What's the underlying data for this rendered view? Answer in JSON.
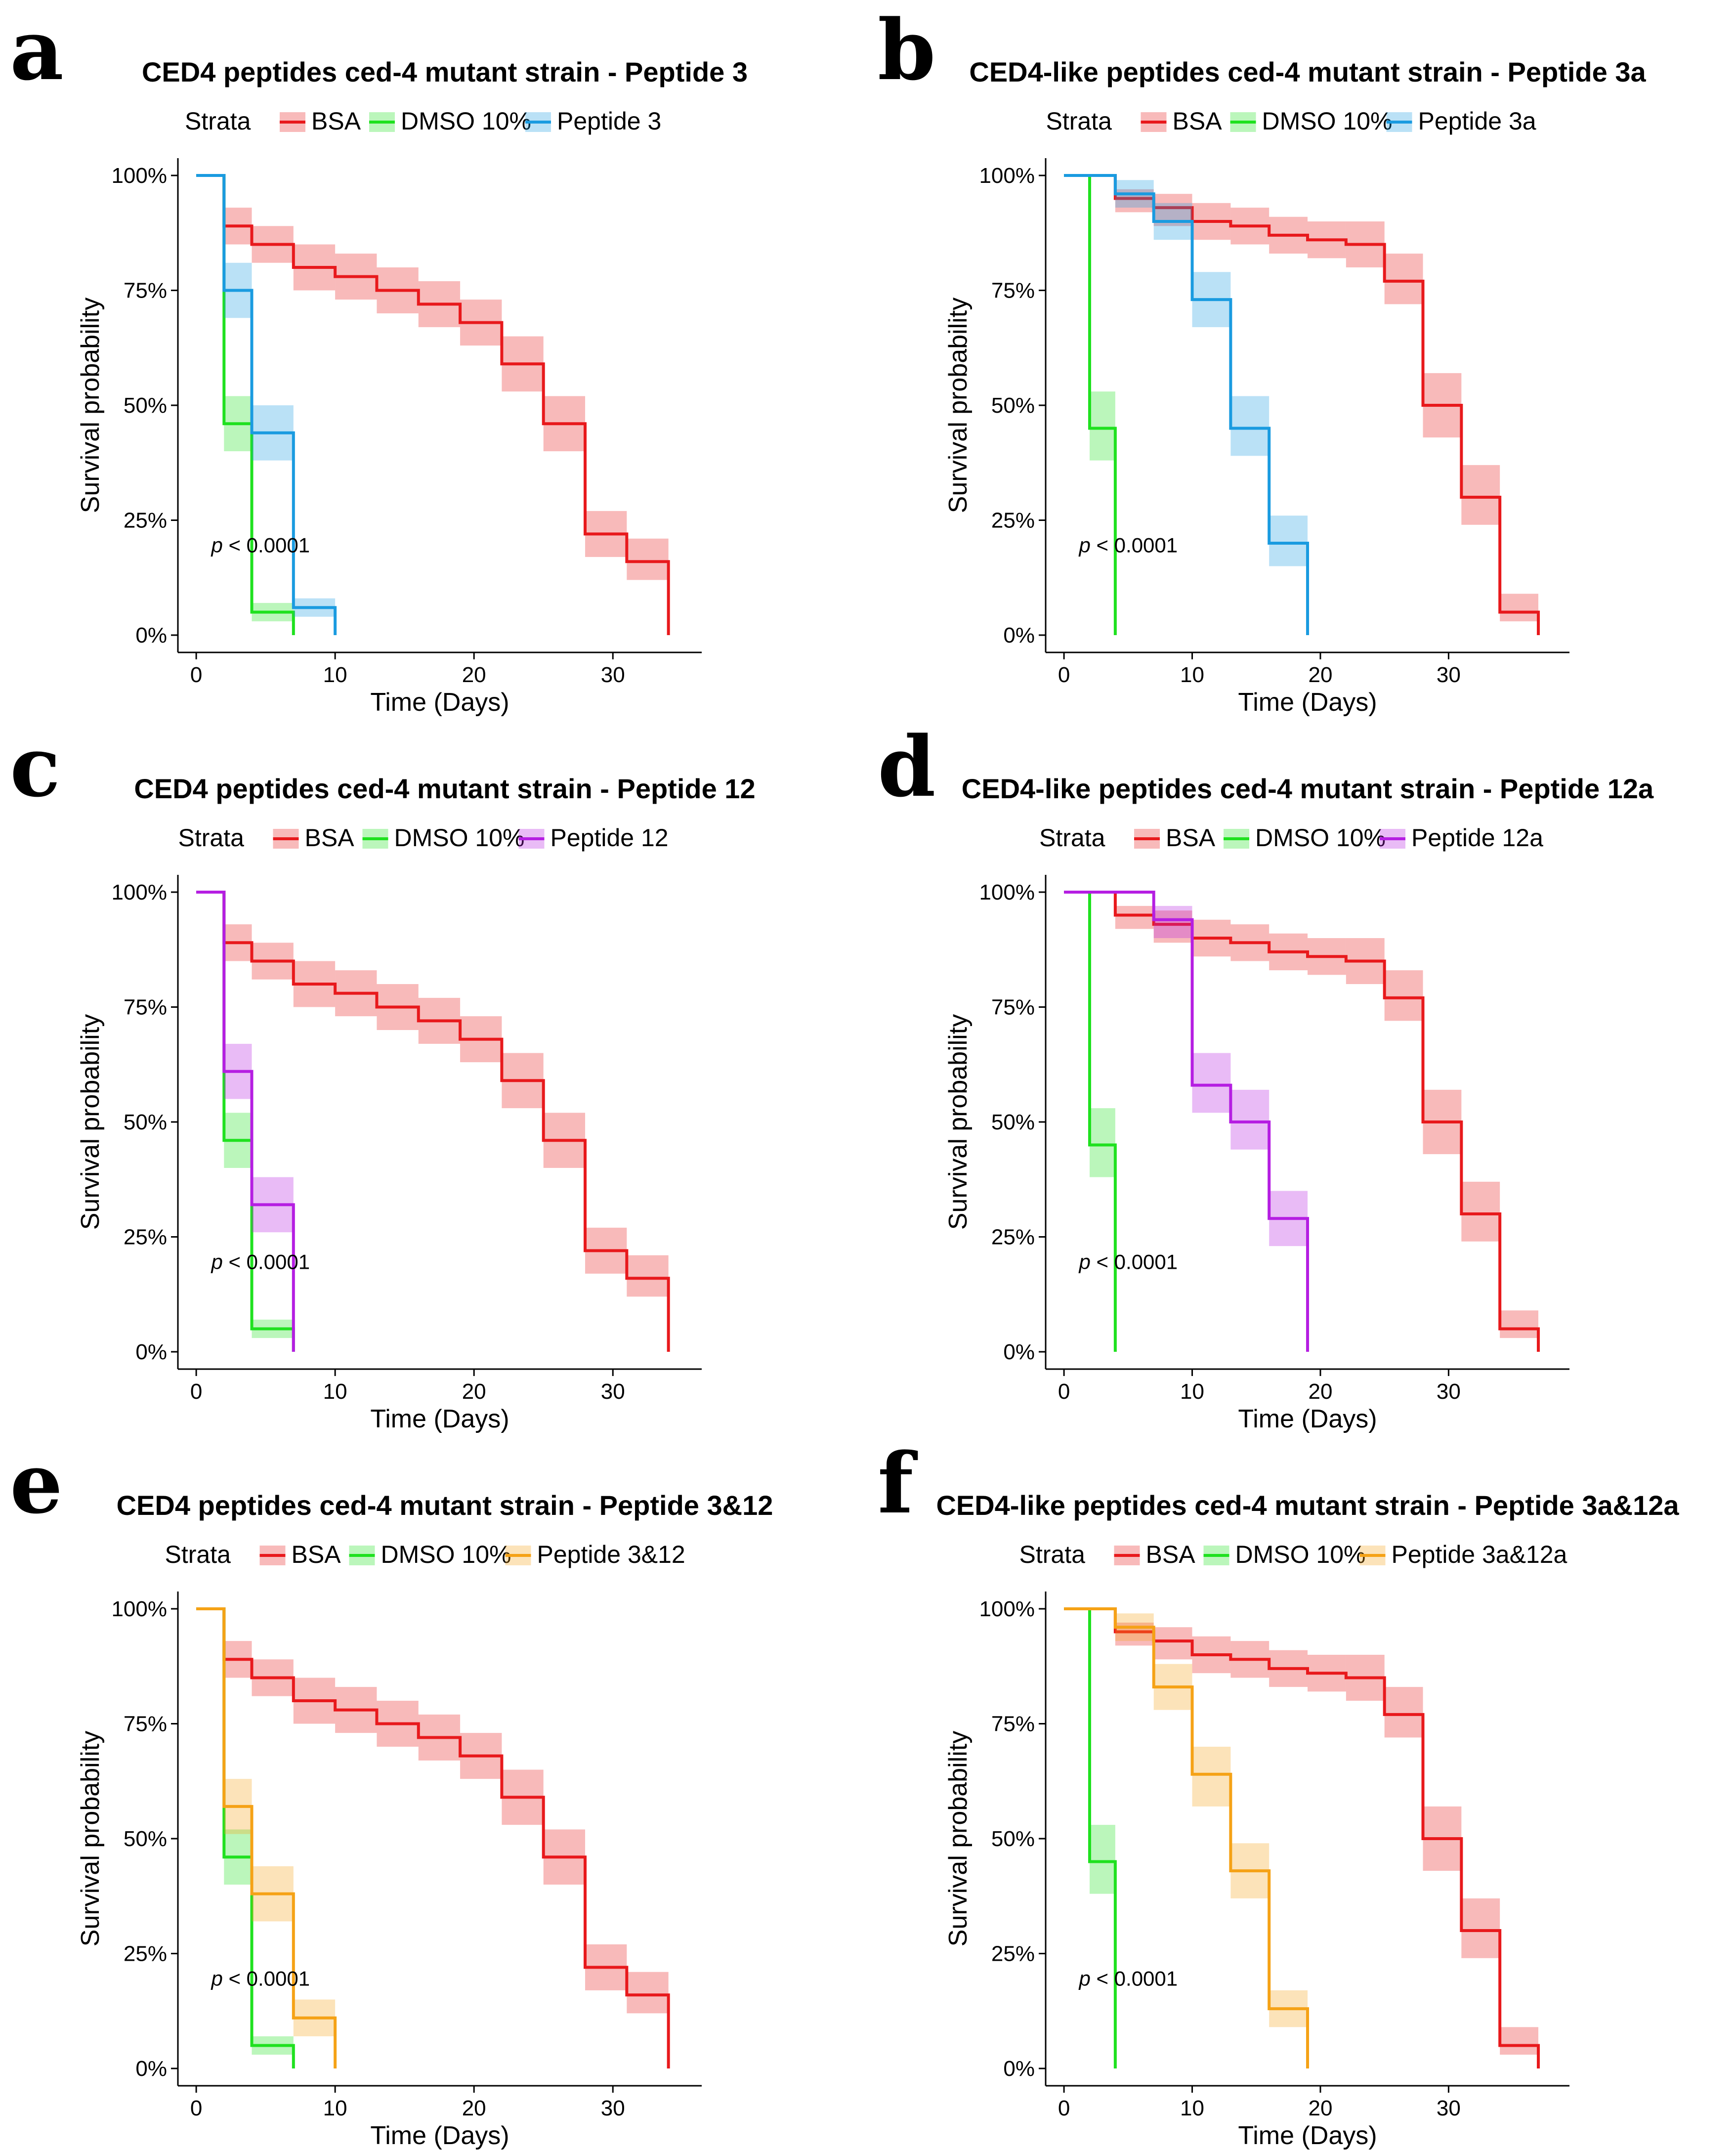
{
  "common": {
    "legend_title": "Strata",
    "xlabel": "Time (Days)",
    "ylabel": "Survival probability",
    "p_symbol": "p",
    "p_rest": " < 0.0001",
    "xticks": [
      "0",
      "10",
      "20",
      "30"
    ],
    "yticks": [
      "0%",
      "25%",
      "50%",
      "75%",
      "100%"
    ],
    "colors": {
      "BSA": "#e8191c",
      "DMSO 10%": "#1fe11f",
      "Peptide 3": "#1a9be0",
      "Peptide 3a": "#1a9be0",
      "Peptide 12": "#b51ee2",
      "Peptide 12a": "#b51ee2",
      "Peptide 3&12": "#f5a216",
      "Peptide 3a&12a": "#f5a216"
    }
  },
  "chart_data": [
    {
      "panel": "a",
      "type": "line",
      "title": "CED4 peptides ced-4 mutant strain - Peptide 3",
      "xlim": [
        0,
        36
      ],
      "ylim": [
        0,
        1
      ],
      "legend": [
        "BSA",
        "DMSO 10%",
        "Peptide 3"
      ],
      "series": [
        {
          "name": "BSA",
          "x": [
            0,
            2,
            4,
            7,
            10,
            13,
            16,
            19,
            22,
            25,
            28,
            31,
            34
          ],
          "y": [
            1,
            0.89,
            0.85,
            0.8,
            0.78,
            0.75,
            0.72,
            0.68,
            0.59,
            0.46,
            0.22,
            0.16,
            0
          ],
          "lo": [
            1,
            0.85,
            0.81,
            0.75,
            0.73,
            0.7,
            0.67,
            0.63,
            0.53,
            0.4,
            0.17,
            0.12,
            0
          ],
          "hi": [
            1,
            0.93,
            0.89,
            0.85,
            0.83,
            0.8,
            0.77,
            0.73,
            0.65,
            0.52,
            0.27,
            0.21,
            0
          ]
        },
        {
          "name": "DMSO 10%",
          "x": [
            0,
            2,
            4,
            7
          ],
          "y": [
            1,
            0.46,
            0.05,
            0
          ],
          "lo": [
            1,
            0.4,
            0.03,
            0
          ],
          "hi": [
            1,
            0.52,
            0.07,
            0
          ]
        },
        {
          "name": "Peptide 3",
          "x": [
            0,
            2,
            4,
            7,
            10
          ],
          "y": [
            1,
            0.75,
            0.44,
            0.06,
            0
          ],
          "lo": [
            1,
            0.69,
            0.38,
            0.04,
            0
          ],
          "hi": [
            1,
            0.81,
            0.5,
            0.08,
            0
          ]
        }
      ]
    },
    {
      "panel": "b",
      "type": "line",
      "title": "CED4-like peptides ced-4 mutant strain - Peptide 3a",
      "xlim": [
        0,
        39
      ],
      "ylim": [
        0,
        1
      ],
      "legend": [
        "BSA",
        "DMSO 10%",
        "Peptide 3a"
      ],
      "series": [
        {
          "name": "BSA",
          "x": [
            0,
            4,
            7,
            10,
            13,
            16,
            19,
            22,
            25,
            28,
            31,
            34,
            37
          ],
          "y": [
            1,
            0.95,
            0.93,
            0.9,
            0.89,
            0.87,
            0.86,
            0.85,
            0.77,
            0.5,
            0.3,
            0.05,
            0
          ],
          "lo": [
            1,
            0.92,
            0.89,
            0.86,
            0.85,
            0.83,
            0.82,
            0.8,
            0.72,
            0.43,
            0.24,
            0.03,
            0
          ],
          "hi": [
            1,
            0.97,
            0.96,
            0.94,
            0.93,
            0.91,
            0.9,
            0.9,
            0.83,
            0.57,
            0.37,
            0.09,
            0
          ]
        },
        {
          "name": "DMSO 10%",
          "x": [
            0,
            2,
            4
          ],
          "y": [
            1,
            0.45,
            0
          ],
          "lo": [
            1,
            0.38,
            0
          ],
          "hi": [
            1,
            0.53,
            0
          ]
        },
        {
          "name": "Peptide 3a",
          "x": [
            0,
            4,
            7,
            10,
            13,
            16,
            19
          ],
          "y": [
            1,
            0.96,
            0.9,
            0.73,
            0.45,
            0.2,
            0
          ],
          "lo": [
            1,
            0.93,
            0.86,
            0.67,
            0.39,
            0.15,
            0
          ],
          "hi": [
            1,
            0.99,
            0.94,
            0.79,
            0.52,
            0.26,
            0
          ]
        }
      ]
    },
    {
      "panel": "c",
      "type": "line",
      "title": "CED4 peptides ced-4 mutant strain - Peptide 12",
      "xlim": [
        0,
        36
      ],
      "ylim": [
        0,
        1
      ],
      "legend": [
        "BSA",
        "DMSO 10%",
        "Peptide 12"
      ],
      "series": [
        {
          "name": "BSA",
          "x": [
            0,
            2,
            4,
            7,
            10,
            13,
            16,
            19,
            22,
            25,
            28,
            31,
            34
          ],
          "y": [
            1,
            0.89,
            0.85,
            0.8,
            0.78,
            0.75,
            0.72,
            0.68,
            0.59,
            0.46,
            0.22,
            0.16,
            0
          ],
          "lo": [
            1,
            0.85,
            0.81,
            0.75,
            0.73,
            0.7,
            0.67,
            0.63,
            0.53,
            0.4,
            0.17,
            0.12,
            0
          ],
          "hi": [
            1,
            0.93,
            0.89,
            0.85,
            0.83,
            0.8,
            0.77,
            0.73,
            0.65,
            0.52,
            0.27,
            0.21,
            0
          ]
        },
        {
          "name": "DMSO 10%",
          "x": [
            0,
            2,
            4,
            7
          ],
          "y": [
            1,
            0.46,
            0.05,
            0
          ],
          "lo": [
            1,
            0.4,
            0.03,
            0
          ],
          "hi": [
            1,
            0.52,
            0.07,
            0
          ]
        },
        {
          "name": "Peptide 12",
          "x": [
            0,
            2,
            4,
            7
          ],
          "y": [
            1,
            0.61,
            0.32,
            0
          ],
          "lo": [
            1,
            0.55,
            0.26,
            0
          ],
          "hi": [
            1,
            0.67,
            0.38,
            0
          ]
        }
      ]
    },
    {
      "panel": "d",
      "type": "line",
      "title": "CED4-like peptides ced-4 mutant strain - Peptide 12a",
      "xlim": [
        0,
        39
      ],
      "ylim": [
        0,
        1
      ],
      "legend": [
        "BSA",
        "DMSO 10%",
        "Peptide 12a"
      ],
      "series": [
        {
          "name": "BSA",
          "x": [
            0,
            4,
            7,
            10,
            13,
            16,
            19,
            22,
            25,
            28,
            31,
            34,
            37
          ],
          "y": [
            1,
            0.95,
            0.93,
            0.9,
            0.89,
            0.87,
            0.86,
            0.85,
            0.77,
            0.5,
            0.3,
            0.05,
            0
          ],
          "lo": [
            1,
            0.92,
            0.89,
            0.86,
            0.85,
            0.83,
            0.82,
            0.8,
            0.72,
            0.43,
            0.24,
            0.03,
            0
          ],
          "hi": [
            1,
            0.97,
            0.96,
            0.94,
            0.93,
            0.91,
            0.9,
            0.9,
            0.83,
            0.57,
            0.37,
            0.09,
            0
          ]
        },
        {
          "name": "DMSO 10%",
          "x": [
            0,
            2,
            4
          ],
          "y": [
            1,
            0.45,
            0
          ],
          "lo": [
            1,
            0.38,
            0
          ],
          "hi": [
            1,
            0.53,
            0
          ]
        },
        {
          "name": "Peptide 12a",
          "x": [
            0,
            7,
            10,
            13,
            16,
            19
          ],
          "y": [
            1,
            0.94,
            0.58,
            0.5,
            0.29,
            0
          ],
          "lo": [
            1,
            0.9,
            0.52,
            0.44,
            0.23,
            0
          ],
          "hi": [
            1,
            0.97,
            0.65,
            0.57,
            0.35,
            0
          ]
        }
      ]
    },
    {
      "panel": "e",
      "type": "line",
      "title": "CED4 peptides ced-4 mutant strain - Peptide 3&12",
      "xlim": [
        0,
        36
      ],
      "ylim": [
        0,
        1
      ],
      "legend": [
        "BSA",
        "DMSO 10%",
        "Peptide 3&12"
      ],
      "series": [
        {
          "name": "BSA",
          "x": [
            0,
            2,
            4,
            7,
            10,
            13,
            16,
            19,
            22,
            25,
            28,
            31,
            34
          ],
          "y": [
            1,
            0.89,
            0.85,
            0.8,
            0.78,
            0.75,
            0.72,
            0.68,
            0.59,
            0.46,
            0.22,
            0.16,
            0
          ],
          "lo": [
            1,
            0.85,
            0.81,
            0.75,
            0.73,
            0.7,
            0.67,
            0.63,
            0.53,
            0.4,
            0.17,
            0.12,
            0
          ],
          "hi": [
            1,
            0.93,
            0.89,
            0.85,
            0.83,
            0.8,
            0.77,
            0.73,
            0.65,
            0.52,
            0.27,
            0.21,
            0
          ]
        },
        {
          "name": "DMSO 10%",
          "x": [
            0,
            2,
            4,
            7
          ],
          "y": [
            1,
            0.46,
            0.05,
            0
          ],
          "lo": [
            1,
            0.4,
            0.03,
            0
          ],
          "hi": [
            1,
            0.52,
            0.07,
            0
          ]
        },
        {
          "name": "Peptide 3&12",
          "x": [
            0,
            2,
            4,
            7,
            10
          ],
          "y": [
            1,
            0.57,
            0.38,
            0.11,
            0
          ],
          "lo": [
            1,
            0.51,
            0.32,
            0.07,
            0
          ],
          "hi": [
            1,
            0.63,
            0.44,
            0.15,
            0
          ]
        }
      ]
    },
    {
      "panel": "f",
      "type": "line",
      "title": "CED4-like peptides ced-4 mutant strain - Peptide 3a&12a",
      "xlim": [
        0,
        39
      ],
      "ylim": [
        0,
        1
      ],
      "legend": [
        "BSA",
        "DMSO 10%",
        "Peptide 3a&12a"
      ],
      "series": [
        {
          "name": "BSA",
          "x": [
            0,
            4,
            7,
            10,
            13,
            16,
            19,
            22,
            25,
            28,
            31,
            34,
            37
          ],
          "y": [
            1,
            0.95,
            0.93,
            0.9,
            0.89,
            0.87,
            0.86,
            0.85,
            0.77,
            0.5,
            0.3,
            0.05,
            0
          ],
          "lo": [
            1,
            0.92,
            0.89,
            0.86,
            0.85,
            0.83,
            0.82,
            0.8,
            0.72,
            0.43,
            0.24,
            0.03,
            0
          ],
          "hi": [
            1,
            0.97,
            0.96,
            0.94,
            0.93,
            0.91,
            0.9,
            0.9,
            0.83,
            0.57,
            0.37,
            0.09,
            0
          ]
        },
        {
          "name": "DMSO 10%",
          "x": [
            0,
            2,
            4
          ],
          "y": [
            1,
            0.45,
            0
          ],
          "lo": [
            1,
            0.38,
            0
          ],
          "hi": [
            1,
            0.53,
            0
          ]
        },
        {
          "name": "Peptide 3a&12a",
          "x": [
            0,
            4,
            7,
            10,
            13,
            16,
            19
          ],
          "y": [
            1,
            0.96,
            0.83,
            0.64,
            0.43,
            0.13,
            0
          ],
          "lo": [
            1,
            0.93,
            0.78,
            0.57,
            0.37,
            0.09,
            0
          ],
          "hi": [
            1,
            0.99,
            0.88,
            0.7,
            0.49,
            0.17,
            0
          ]
        }
      ]
    }
  ]
}
